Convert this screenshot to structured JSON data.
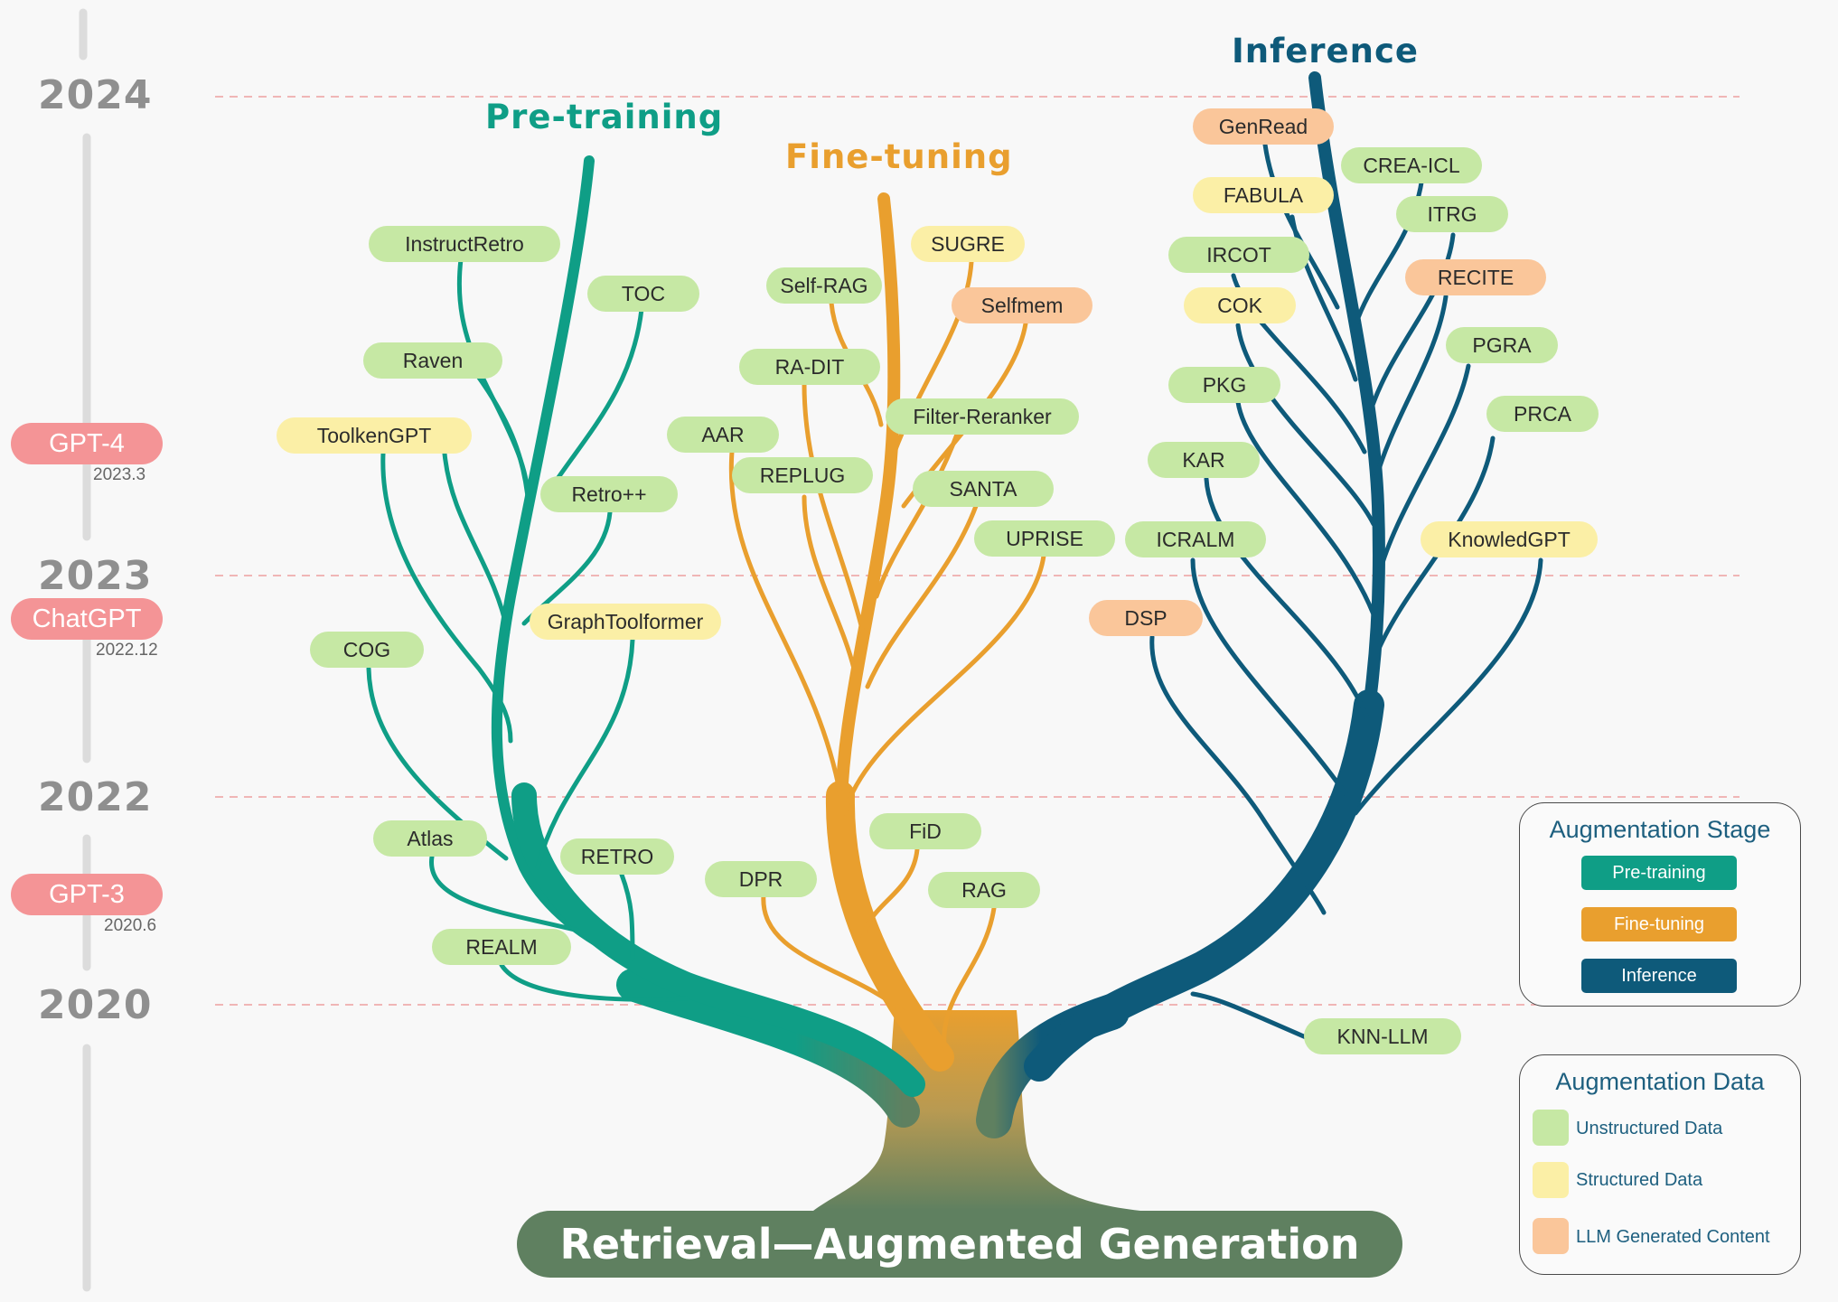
{
  "colors": {
    "pretraining": "#0f9e86",
    "finetuning": "#e99f2e",
    "inference": "#0e5a7a",
    "root": "#5f8060",
    "unstructured": "#c6e8a4",
    "structured": "#fbefa6",
    "llm_generated": "#fac69a",
    "milestone": "#f49496",
    "year_guide": "#e96b6b",
    "timeline_bar": "#dcdcdc"
  },
  "root_label": "Retrieval—Augmented Generation",
  "stage_titles": {
    "pretraining": "Pre-training",
    "finetuning": "Fine-tuning",
    "inference": "Inference"
  },
  "timeline": {
    "years": [
      "2024",
      "2023",
      "2022",
      "2020"
    ],
    "milestones": [
      {
        "name": "GPT-4",
        "date": "2023.3"
      },
      {
        "name": "ChatGPT",
        "date": "2022.12"
      },
      {
        "name": "GPT-3",
        "date": "2020.6"
      }
    ]
  },
  "nodes": [
    {
      "label": "InstructRetro",
      "stage": "pretraining",
      "data": "unstructured"
    },
    {
      "label": "TOC",
      "stage": "pretraining",
      "data": "unstructured"
    },
    {
      "label": "Raven",
      "stage": "pretraining",
      "data": "unstructured"
    },
    {
      "label": "ToolkenGPT",
      "stage": "pretraining",
      "data": "structured"
    },
    {
      "label": "Retro++",
      "stage": "pretraining",
      "data": "unstructured"
    },
    {
      "label": "GraphToolformer",
      "stage": "pretraining",
      "data": "structured"
    },
    {
      "label": "COG",
      "stage": "pretraining",
      "data": "unstructured"
    },
    {
      "label": "Atlas",
      "stage": "pretraining",
      "data": "unstructured"
    },
    {
      "label": "RETRO",
      "stage": "pretraining",
      "data": "unstructured"
    },
    {
      "label": "REALM",
      "stage": "pretraining",
      "data": "unstructured"
    },
    {
      "label": "SUGRE",
      "stage": "finetuning",
      "data": "structured"
    },
    {
      "label": "Self-RAG",
      "stage": "finetuning",
      "data": "unstructured"
    },
    {
      "label": "Selfmem",
      "stage": "finetuning",
      "data": "llm_generated"
    },
    {
      "label": "RA-DIT",
      "stage": "finetuning",
      "data": "unstructured"
    },
    {
      "label": "Filter-Reranker",
      "stage": "finetuning",
      "data": "unstructured"
    },
    {
      "label": "AAR",
      "stage": "finetuning",
      "data": "unstructured"
    },
    {
      "label": "REPLUG",
      "stage": "finetuning",
      "data": "unstructured"
    },
    {
      "label": "SANTA",
      "stage": "finetuning",
      "data": "unstructured"
    },
    {
      "label": "UPRISE",
      "stage": "finetuning",
      "data": "unstructured"
    },
    {
      "label": "FiD",
      "stage": "finetuning",
      "data": "unstructured"
    },
    {
      "label": "DPR",
      "stage": "finetuning",
      "data": "unstructured"
    },
    {
      "label": "RAG",
      "stage": "finetuning",
      "data": "unstructured"
    },
    {
      "label": "GenRead",
      "stage": "inference",
      "data": "llm_generated"
    },
    {
      "label": "CREA-ICL",
      "stage": "inference",
      "data": "unstructured"
    },
    {
      "label": "FABULA",
      "stage": "inference",
      "data": "structured"
    },
    {
      "label": "ITRG",
      "stage": "inference",
      "data": "unstructured"
    },
    {
      "label": "IRCOT",
      "stage": "inference",
      "data": "unstructured"
    },
    {
      "label": "RECITE",
      "stage": "inference",
      "data": "llm_generated"
    },
    {
      "label": "COK",
      "stage": "inference",
      "data": "structured"
    },
    {
      "label": "PGRA",
      "stage": "inference",
      "data": "unstructured"
    },
    {
      "label": "PKG",
      "stage": "inference",
      "data": "unstructured"
    },
    {
      "label": "PRCA",
      "stage": "inference",
      "data": "unstructured"
    },
    {
      "label": "KAR",
      "stage": "inference",
      "data": "unstructured"
    },
    {
      "label": "ICRALM",
      "stage": "inference",
      "data": "unstructured"
    },
    {
      "label": "KnowledGPT",
      "stage": "inference",
      "data": "structured"
    },
    {
      "label": "DSP",
      "stage": "inference",
      "data": "llm_generated"
    },
    {
      "label": "KNN-LLM",
      "stage": "inference",
      "data": "unstructured"
    }
  ],
  "legend": {
    "stage_title": "Augmentation Stage",
    "stage_items": [
      {
        "label": "Pre-training",
        "key": "pretraining"
      },
      {
        "label": "Fine-tuning",
        "key": "finetuning"
      },
      {
        "label": "Inference",
        "key": "inference"
      }
    ],
    "data_title": "Augmentation Data",
    "data_items": [
      {
        "label": "Unstructured Data",
        "key": "unstructured"
      },
      {
        "label": "Structured Data",
        "key": "structured"
      },
      {
        "label": "LLM Generated Content",
        "key": "llm_generated"
      }
    ]
  }
}
